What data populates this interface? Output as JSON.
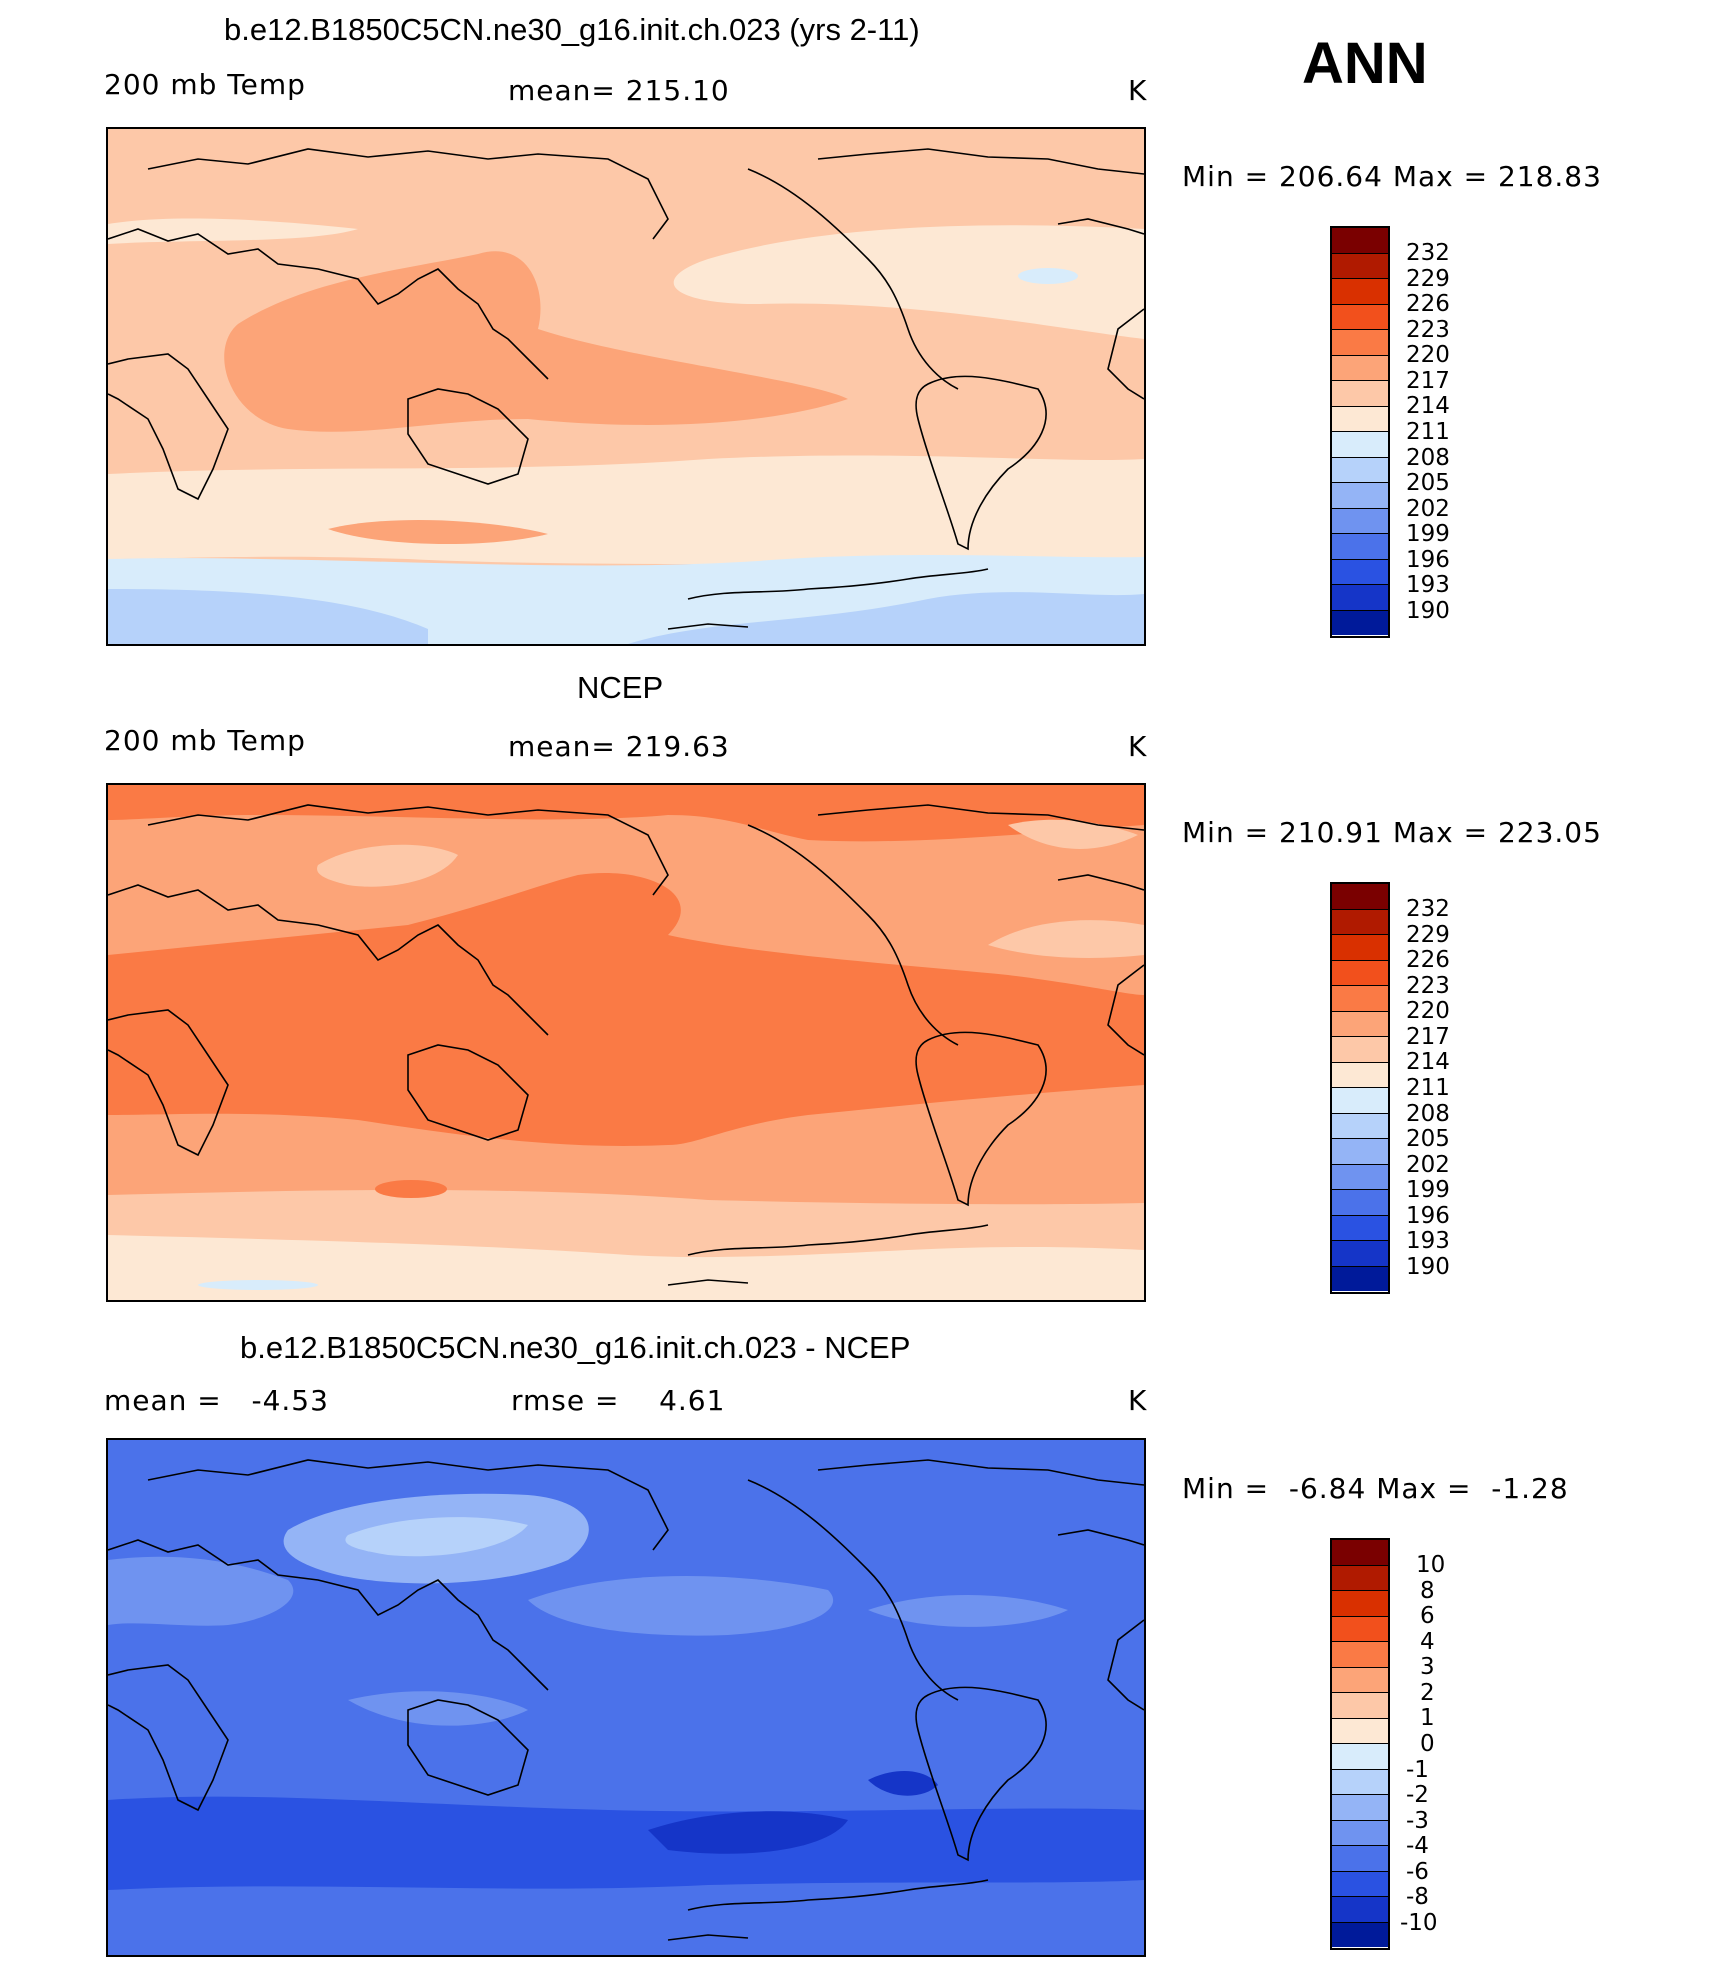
{
  "season": "ANN",
  "panels": [
    {
      "title": "b.e12.B1850C5CN.ne30_g16.init.ch.023 (yrs 2-11)",
      "left_label": "200 mb Temp",
      "center_label": "mean= 215.10",
      "units": "K",
      "minmax": "Min = 206.64 Max = 218.83",
      "scale": {
        "labels": [
          "232",
          "229",
          "226",
          "223",
          "220",
          "217",
          "214",
          "211",
          "208",
          "205",
          "202",
          "199",
          "196",
          "193",
          "190"
        ],
        "colors": [
          "#7a0000",
          "#b01a00",
          "#d93000",
          "#f2501c",
          "#fa7a45",
          "#fca478",
          "#fdc8a8",
          "#fde8d4",
          "#d8ecfb",
          "#b6d2fa",
          "#94b4f6",
          "#6f93f0",
          "#4b72ea",
          "#2a52e2",
          "#1535c8",
          "#001a9a"
        ]
      }
    },
    {
      "title": "NCEP",
      "left_label": "200 mb Temp",
      "center_label": "mean= 219.63",
      "units": "K",
      "minmax": "Min = 210.91 Max = 223.05",
      "scale": {
        "labels": [
          "232",
          "229",
          "226",
          "223",
          "220",
          "217",
          "214",
          "211",
          "208",
          "205",
          "202",
          "199",
          "196",
          "193",
          "190"
        ],
        "colors": [
          "#7a0000",
          "#b01a00",
          "#d93000",
          "#f2501c",
          "#fa7a45",
          "#fca478",
          "#fdc8a8",
          "#fde8d4",
          "#d8ecfb",
          "#b6d2fa",
          "#94b4f6",
          "#6f93f0",
          "#4b72ea",
          "#2a52e2",
          "#1535c8",
          "#001a9a"
        ]
      }
    },
    {
      "title": "b.e12.B1850C5CN.ne30_g16.init.ch.023 - NCEP",
      "left_label": "mean =   -4.53",
      "center_label": "rmse =    4.61",
      "units": "K",
      "minmax": "Min =  -6.84 Max =  -1.28",
      "scale": {
        "labels": [
          "10",
          "8",
          "6",
          "4",
          "3",
          "2",
          "1",
          "0",
          "-1",
          "-2",
          "-3",
          "-4",
          "-6",
          "-8",
          "-10"
        ],
        "colors": [
          "#7a0000",
          "#b01a00",
          "#d93000",
          "#f2501c",
          "#fa7a45",
          "#fca478",
          "#fdc8a8",
          "#fde8d4",
          "#d8ecfb",
          "#b6d2fa",
          "#94b4f6",
          "#6f93f0",
          "#4b72ea",
          "#2a52e2",
          "#1535c8",
          "#001a9a"
        ]
      }
    }
  ]
}
